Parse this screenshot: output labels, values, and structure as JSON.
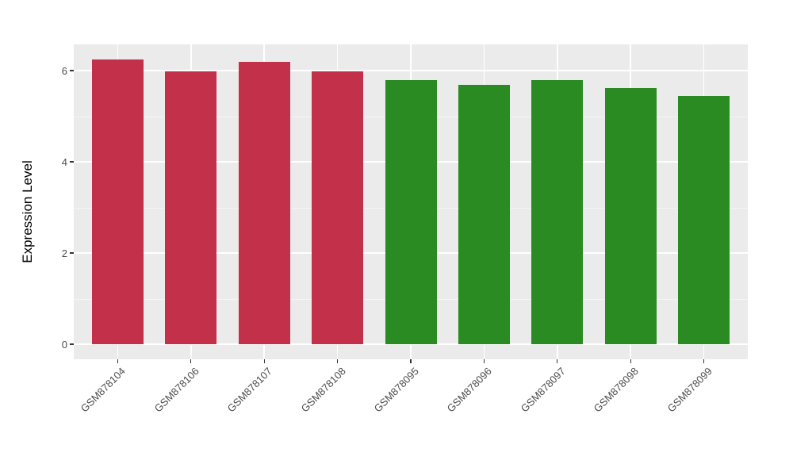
{
  "chart_data": {
    "type": "bar",
    "title": "",
    "xlabel": "",
    "ylabel": "Expression Level",
    "categories": [
      "GSM878104",
      "GSM878106",
      "GSM878107",
      "GSM878108",
      "GSM878095",
      "GSM878096",
      "GSM878097",
      "GSM878098",
      "GSM878099"
    ],
    "values": [
      6.25,
      5.98,
      6.2,
      5.98,
      5.8,
      5.69,
      5.79,
      5.61,
      5.44
    ],
    "bar_colors": [
      "#C3304A",
      "#C3304A",
      "#C3304A",
      "#C3304A",
      "#2A8B22",
      "#2A8B22",
      "#2A8B22",
      "#2A8B22",
      "#2A8B22"
    ],
    "groups": [
      {
        "color": "#C3304A",
        "samples": [
          "GSM878104",
          "GSM878106",
          "GSM878107",
          "GSM878108"
        ]
      },
      {
        "color": "#2A8B22",
        "samples": [
          "GSM878095",
          "GSM878096",
          "GSM878097",
          "GSM878098",
          "GSM878099"
        ]
      }
    ],
    "yticks": [
      0,
      2,
      4,
      6
    ],
    "yminor": [
      1,
      3,
      5
    ],
    "ylim": [
      -0.31,
      6.57
    ],
    "grid": "on",
    "legend": "none",
    "style": {
      "panel_bg": "#EBEBEB",
      "grid_major_color": "#FFFFFF",
      "grid_minor_color": "#F5F5F5",
      "tick_mark_color": "#333333",
      "tick_label_color": "#4D4D4D",
      "axis_title_color": "#000000",
      "figure_bg": "#FFFFFF"
    }
  }
}
